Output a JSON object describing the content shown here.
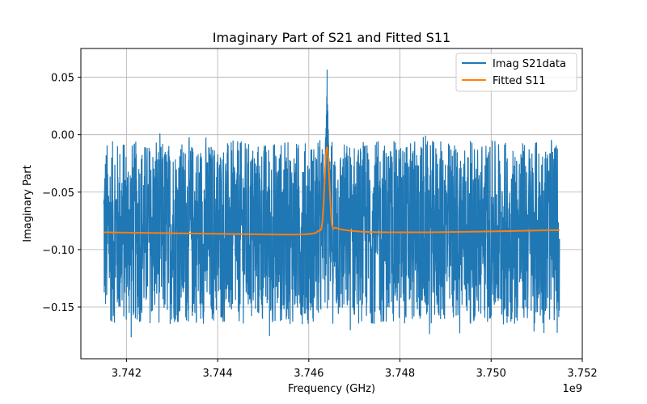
{
  "chart_data": {
    "type": "line",
    "title": "Imaginary Part of S21 and Fitted S11",
    "xlabel": "Frequency (GHz)",
    "ylabel": "Imaginary Part",
    "x_offset_label": "1e9",
    "xlim": [
      3.741,
      3.752
    ],
    "ylim": [
      -0.195,
      0.075
    ],
    "x_ticks": [
      3.742,
      3.744,
      3.746,
      3.748,
      3.75,
      3.752
    ],
    "x_tick_labels": [
      "3.742",
      "3.744",
      "3.746",
      "3.748",
      "3.750",
      "3.752"
    ],
    "y_ticks": [
      0.05,
      0.0,
      -0.05,
      -0.1,
      -0.15
    ],
    "y_tick_labels": [
      "0.05",
      "0.00",
      "−0.05",
      "−0.10",
      "−0.15"
    ],
    "grid": true,
    "legend_position": "top-right",
    "colors": {
      "data": "#1f77b4",
      "fit": "#ff7f0e",
      "grid": "#b0b0b0"
    },
    "series": [
      {
        "name": "Imag S21data",
        "kind": "noisy_band",
        "x_range": [
          3.7415,
          3.7515
        ],
        "description_points": {
          "baseline_mean": -0.085,
          "typical_max": 0.0,
          "typical_min": -0.16,
          "extreme_max": 0.062,
          "extreme_min": -0.183,
          "resonance_peak_x": 3.7464,
          "resonance_peak_y": 0.062
        }
      },
      {
        "name": "Fitted S11",
        "kind": "lorentzian",
        "x": [
          3.7415,
          3.7425,
          3.7435,
          3.7445,
          3.7455,
          3.746,
          3.7462,
          3.7463,
          3.7464,
          3.7465,
          3.7466,
          3.7468,
          3.7472,
          3.748,
          3.749,
          3.75,
          3.7515
        ],
        "y": [
          -0.085,
          -0.0855,
          -0.086,
          -0.0865,
          -0.087,
          -0.0865,
          -0.084,
          -0.075,
          -0.011,
          -0.075,
          -0.081,
          -0.083,
          -0.0845,
          -0.085,
          -0.0848,
          -0.0842,
          -0.083
        ]
      }
    ]
  }
}
